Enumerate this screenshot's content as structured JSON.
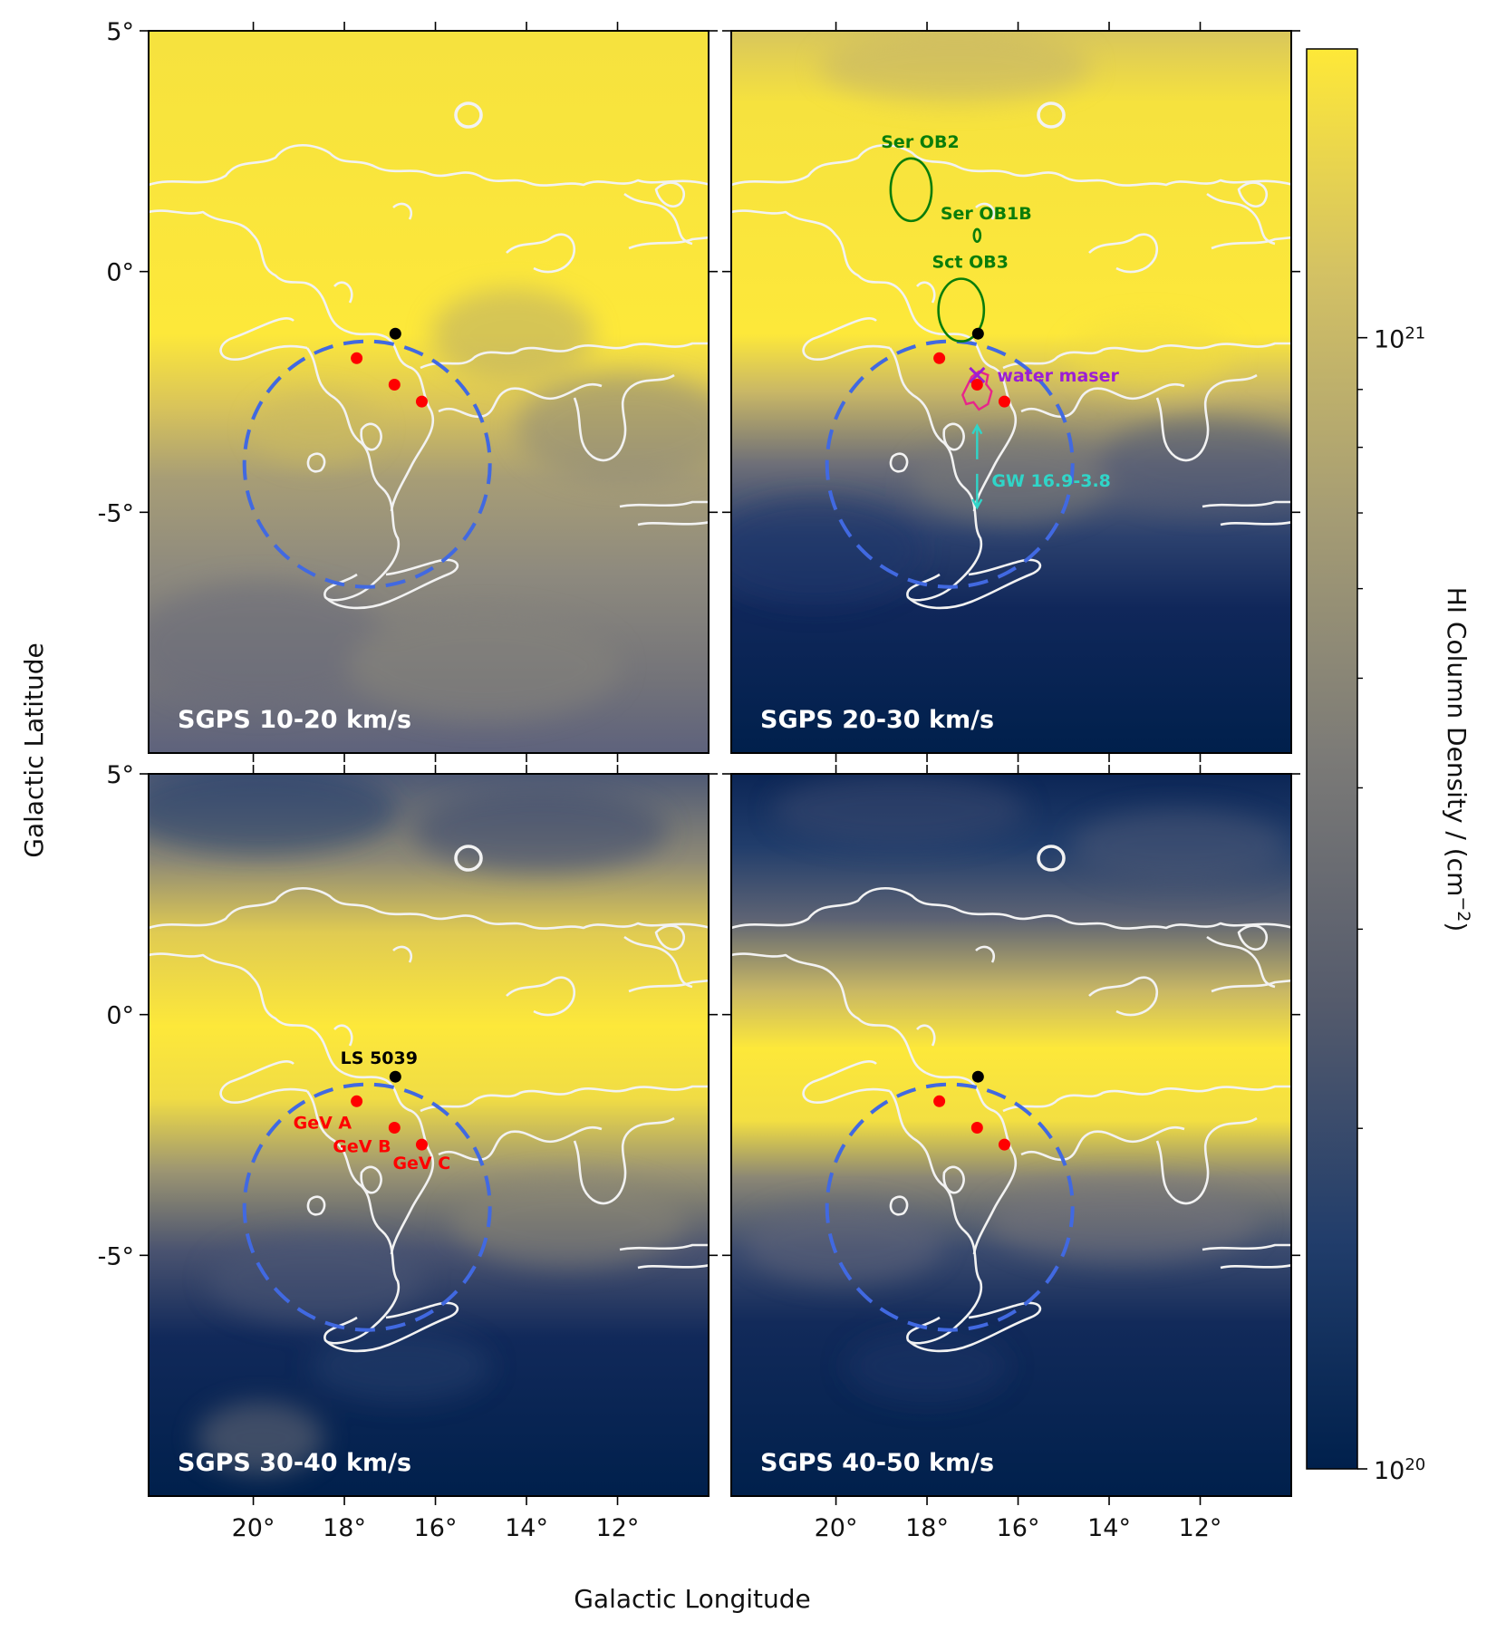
{
  "figure": {
    "x_axis_title": "Galactic Longitude",
    "y_axis_title": "Galactic Latitude",
    "colorbar_title": "HI Column Density / (cm",
    "colorbar_title_sup": "−2",
    "colorbar_title_close": ")"
  },
  "chart_data": {
    "type": "heatmap",
    "xlim": [
      22.3,
      10.0
    ],
    "ylim": [
      -10.0,
      5.0
    ],
    "x_ticks": [
      {
        "value": 20,
        "label": "20°"
      },
      {
        "value": 18,
        "label": "18°"
      },
      {
        "value": 16,
        "label": "16°"
      },
      {
        "value": 14,
        "label": "14°"
      },
      {
        "value": 12,
        "label": "12°"
      }
    ],
    "y_ticks": [
      {
        "value": 5,
        "label": "5°"
      },
      {
        "value": 0,
        "label": "0°"
      },
      {
        "value": -5,
        "label": "-5°"
      }
    ],
    "colorbar": {
      "scale": "log",
      "min": 1e+20,
      "max": 1.8e+21,
      "major_ticks": [
        {
          "value": 1e+20,
          "base": "10",
          "exp": "20"
        },
        {
          "value": 1e+21,
          "base": "10",
          "exp": "21"
        }
      ],
      "colors": [
        "#00204c",
        "#213d6b",
        "#555b6c",
        "#7b7a77",
        "#a59c74",
        "#d3c164",
        "#fee838"
      ]
    },
    "panels": [
      {
        "label": "SGPS 10-20 km/s",
        "field": "strong"
      },
      {
        "label": "SGPS 20-30 km/s",
        "field": "mid"
      },
      {
        "label": "SGPS 30-40 km/s",
        "field": "weak"
      },
      {
        "label": "SGPS 40-50 km/s",
        "field": "band"
      }
    ],
    "sources": {
      "ls5039": {
        "name": "LS 5039",
        "l": 16.88,
        "b": -1.29,
        "color": "#000000"
      },
      "gev": [
        {
          "name": "GeV A",
          "l": 17.73,
          "b": -1.8
        },
        {
          "name": "GeV B",
          "l": 16.9,
          "b": -2.35
        },
        {
          "name": "GeV C",
          "l": 16.3,
          "b": -2.7
        }
      ],
      "gev_color": "#ff0000"
    },
    "region_circle": {
      "l": 17.5,
      "b": -4.0,
      "r": 2.55,
      "color": "#4169e1"
    },
    "ob_associations": [
      {
        "name": "Ser OB2",
        "l": 18.35,
        "b": 1.7,
        "rl": 0.45,
        "rb": 0.65
      },
      {
        "name": "Ser OB1B",
        "l": 16.9,
        "b": 0.75,
        "rl": 0.07,
        "rb": 0.13
      },
      {
        "name": "Sct OB3",
        "l": 17.25,
        "b": -0.8,
        "rl": 0.5,
        "rb": 0.65
      }
    ],
    "ob_color": "#0a7d0a",
    "water_maser": {
      "name": "water maser",
      "l": 16.9,
      "b": -2.15,
      "color": "#9b1fd4"
    },
    "gw": {
      "name": "GW 16.9-3.8",
      "l": 16.9,
      "b_top": -3.2,
      "b_bottom": -4.9,
      "color": "#30d5c8"
    }
  }
}
